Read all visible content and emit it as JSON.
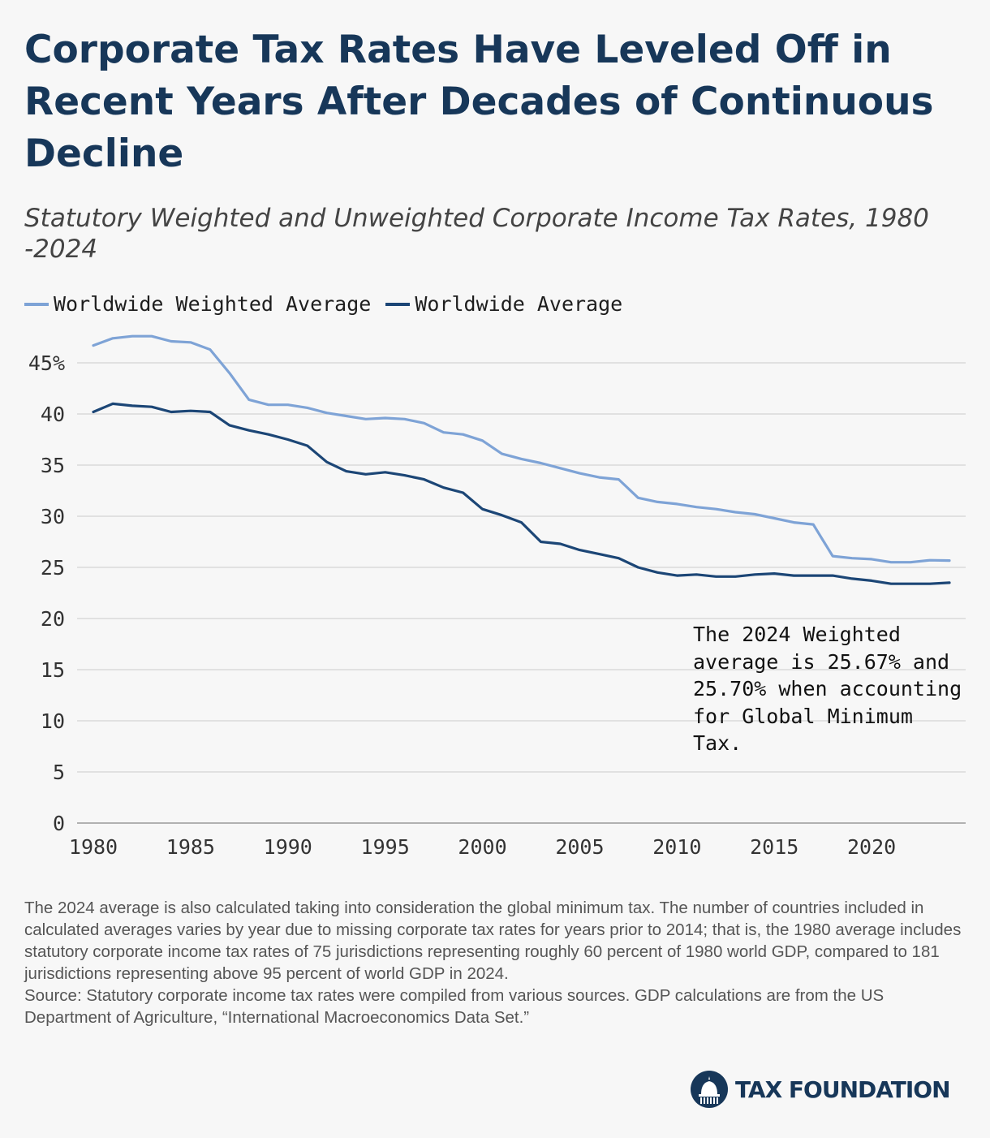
{
  "header": {
    "title": "Corporate Tax Rates Have Leveled Off in Recent Years After Decades of Continuous Decline",
    "subtitle": "Statutory Weighted and Unweighted Corporate Income Tax Rates, 1980 -2024"
  },
  "legend": [
    {
      "label": "Worldwide Weighted Average",
      "color": "#7ea3d6"
    },
    {
      "label": "Worldwide Average",
      "color": "#1c4676"
    }
  ],
  "annotation": "The 2024 Weighted average is 25.67% and 25.70% when accounting for Global Minimum Tax.",
  "notes": {
    "note": "The 2024 average is also calculated taking into consideration the global minimum tax. The number of countries included in calculated averages varies by year due to missing corporate tax rates for years prior to 2014; that is, the 1980 average includes statutory corporate income tax rates of 75 jurisdictions representing roughly 60 percent of 1980 world GDP, compared to 181 jurisdictions representing above 95 percent of world GDP in 2024.",
    "source": "Source: Statutory corporate income tax rates were compiled from various sources. GDP calculations are from the US Department of Agriculture, “International Macroeconomics Data Set.”"
  },
  "logo": {
    "text": "TAX FOUNDATION",
    "icon": "capitol-dome-icon"
  },
  "chart_data": {
    "type": "line",
    "xlim": [
      1980,
      2024
    ],
    "ylim": [
      0,
      45
    ],
    "x_ticks": [
      1980,
      1985,
      1990,
      1995,
      2000,
      2005,
      2010,
      2015,
      2020
    ],
    "y_ticks": [
      0,
      5,
      10,
      15,
      20,
      25,
      30,
      35,
      40,
      45
    ],
    "y_tick_labels": [
      "0",
      "5",
      "10",
      "15",
      "20",
      "25",
      "30",
      "35",
      "40",
      "45%"
    ],
    "grid": "horizontal",
    "legend_position": "top-left",
    "x": [
      1980,
      1981,
      1982,
      1983,
      1984,
      1985,
      1986,
      1987,
      1988,
      1989,
      1990,
      1991,
      1992,
      1993,
      1994,
      1995,
      1996,
      1997,
      1998,
      1999,
      2000,
      2001,
      2002,
      2003,
      2004,
      2005,
      2006,
      2007,
      2008,
      2009,
      2010,
      2011,
      2012,
      2013,
      2014,
      2015,
      2016,
      2017,
      2018,
      2019,
      2020,
      2021,
      2022,
      2023,
      2024
    ],
    "series": [
      {
        "name": "Worldwide Weighted Average",
        "color": "#7ea3d6",
        "values": [
          46.7,
          47.4,
          47.6,
          47.6,
          47.1,
          47.0,
          46.3,
          44.0,
          41.4,
          40.9,
          40.9,
          40.6,
          40.1,
          39.8,
          39.5,
          39.6,
          39.5,
          39.1,
          38.2,
          38.0,
          37.4,
          36.1,
          35.6,
          35.2,
          34.7,
          34.2,
          33.8,
          33.6,
          31.8,
          31.4,
          31.2,
          30.9,
          30.7,
          30.4,
          30.2,
          29.8,
          29.4,
          29.2,
          26.1,
          25.9,
          25.8,
          25.5,
          25.5,
          25.7,
          25.67
        ]
      },
      {
        "name": "Worldwide Average",
        "color": "#1c4676",
        "values": [
          40.2,
          41.0,
          40.8,
          40.7,
          40.2,
          40.3,
          40.2,
          38.9,
          38.4,
          38.0,
          37.5,
          36.9,
          35.3,
          34.4,
          34.1,
          34.3,
          34.0,
          33.6,
          32.8,
          32.3,
          30.7,
          30.1,
          29.4,
          27.5,
          27.3,
          26.7,
          26.3,
          25.9,
          25.0,
          24.5,
          24.2,
          24.3,
          24.1,
          24.1,
          24.3,
          24.4,
          24.2,
          24.2,
          24.2,
          23.9,
          23.7,
          23.4,
          23.4,
          23.4,
          23.5
        ]
      }
    ]
  }
}
